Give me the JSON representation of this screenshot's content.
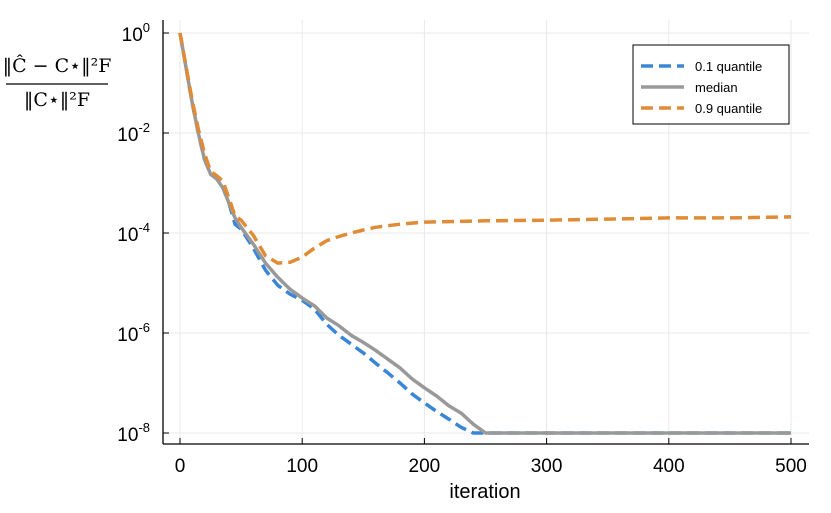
{
  "chart_data": {
    "type": "line",
    "xlabel": "iteration",
    "ylabel": {
      "numerator": "‖Ĉ − C⋆‖²F",
      "denominator": "‖C⋆‖²F"
    },
    "xscale": "linear",
    "yscale": "log",
    "xlim": [
      -12,
      510
    ],
    "ylim": [
      1e-08,
      1
    ],
    "x_ticks": [
      "0",
      "100",
      "200",
      "300",
      "400",
      "500"
    ],
    "y_ticks": [
      {
        "base": "10",
        "exp": "0"
      },
      {
        "base": "10",
        "exp": "-2"
      },
      {
        "base": "10",
        "exp": "-4"
      },
      {
        "base": "10",
        "exp": "-6"
      },
      {
        "base": "10",
        "exp": "-8"
      }
    ],
    "grid": true,
    "legend_position": "top-right",
    "series": [
      {
        "name": "0.1 quantile",
        "color": "#3a86d6",
        "style": "dashed",
        "points": [
          [
            0,
            1
          ],
          [
            10,
            0.04
          ],
          [
            15,
            0.01
          ],
          [
            20,
            0.003
          ],
          [
            25,
            0.0015
          ],
          [
            30,
            0.0013
          ],
          [
            35,
            0.0009
          ],
          [
            40,
            0.0004
          ],
          [
            45,
            0.00015
          ],
          [
            50,
            0.00012
          ],
          [
            60,
            5e-05
          ],
          [
            70,
            1.8e-05
          ],
          [
            80,
            9e-06
          ],
          [
            90,
            6e-06
          ],
          [
            100,
            4.5e-06
          ],
          [
            110,
            3e-06
          ],
          [
            120,
            1.5e-06
          ],
          [
            130,
            9e-07
          ],
          [
            140,
            6e-07
          ],
          [
            150,
            4e-07
          ],
          [
            160,
            2.5e-07
          ],
          [
            170,
            1.6e-07
          ],
          [
            180,
            1e-07
          ],
          [
            190,
            6e-08
          ],
          [
            200,
            4e-08
          ],
          [
            210,
            2.7e-08
          ],
          [
            220,
            1.9e-08
          ],
          [
            230,
            1.3e-08
          ],
          [
            240,
            1e-08
          ],
          [
            250,
            1e-08
          ],
          [
            300,
            1e-08
          ],
          [
            400,
            1e-08
          ],
          [
            500,
            1e-08
          ]
        ]
      },
      {
        "name": "median",
        "color": "#999999",
        "style": "solid",
        "points": [
          [
            0,
            1
          ],
          [
            10,
            0.04
          ],
          [
            15,
            0.01
          ],
          [
            20,
            0.003
          ],
          [
            25,
            0.0015
          ],
          [
            30,
            0.0012
          ],
          [
            35,
            0.0008
          ],
          [
            40,
            0.0004
          ],
          [
            45,
            0.0002
          ],
          [
            50,
            0.00013
          ],
          [
            60,
            6e-05
          ],
          [
            70,
            2.5e-05
          ],
          [
            80,
            1.3e-05
          ],
          [
            90,
            7.5e-06
          ],
          [
            100,
            5e-06
          ],
          [
            110,
            3.5e-06
          ],
          [
            120,
            2e-06
          ],
          [
            130,
            1.4e-06
          ],
          [
            140,
            9e-07
          ],
          [
            150,
            6.5e-07
          ],
          [
            160,
            4.5e-07
          ],
          [
            170,
            3e-07
          ],
          [
            180,
            2e-07
          ],
          [
            190,
            1.2e-07
          ],
          [
            200,
            8e-08
          ],
          [
            210,
            5.5e-08
          ],
          [
            220,
            3.5e-08
          ],
          [
            230,
            2.5e-08
          ],
          [
            240,
            1.5e-08
          ],
          [
            250,
            1e-08
          ],
          [
            300,
            1e-08
          ],
          [
            400,
            1e-08
          ],
          [
            500,
            1e-08
          ]
        ]
      },
      {
        "name": "0.9 quantile",
        "color": "#e08b36",
        "style": "dashed",
        "points": [
          [
            0,
            1
          ],
          [
            10,
            0.045
          ],
          [
            15,
            0.012
          ],
          [
            20,
            0.004
          ],
          [
            25,
            0.0017
          ],
          [
            30,
            0.0014
          ],
          [
            35,
            0.0011
          ],
          [
            40,
            0.0005
          ],
          [
            45,
            0.00022
          ],
          [
            50,
            0.00018
          ],
          [
            60,
            9e-05
          ],
          [
            70,
            3.5e-05
          ],
          [
            80,
            2.5e-05
          ],
          [
            90,
            2.6e-05
          ],
          [
            100,
            3.3e-05
          ],
          [
            110,
            5e-05
          ],
          [
            120,
            7e-05
          ],
          [
            130,
            8.5e-05
          ],
          [
            140,
            0.0001
          ],
          [
            150,
            0.000115
          ],
          [
            160,
            0.00013
          ],
          [
            180,
            0.00015
          ],
          [
            200,
            0.000165
          ],
          [
            250,
            0.000175
          ],
          [
            300,
            0.00018
          ],
          [
            350,
            0.00019
          ],
          [
            400,
            0.0002
          ],
          [
            450,
            0.0002
          ],
          [
            500,
            0.00021
          ]
        ]
      }
    ]
  }
}
